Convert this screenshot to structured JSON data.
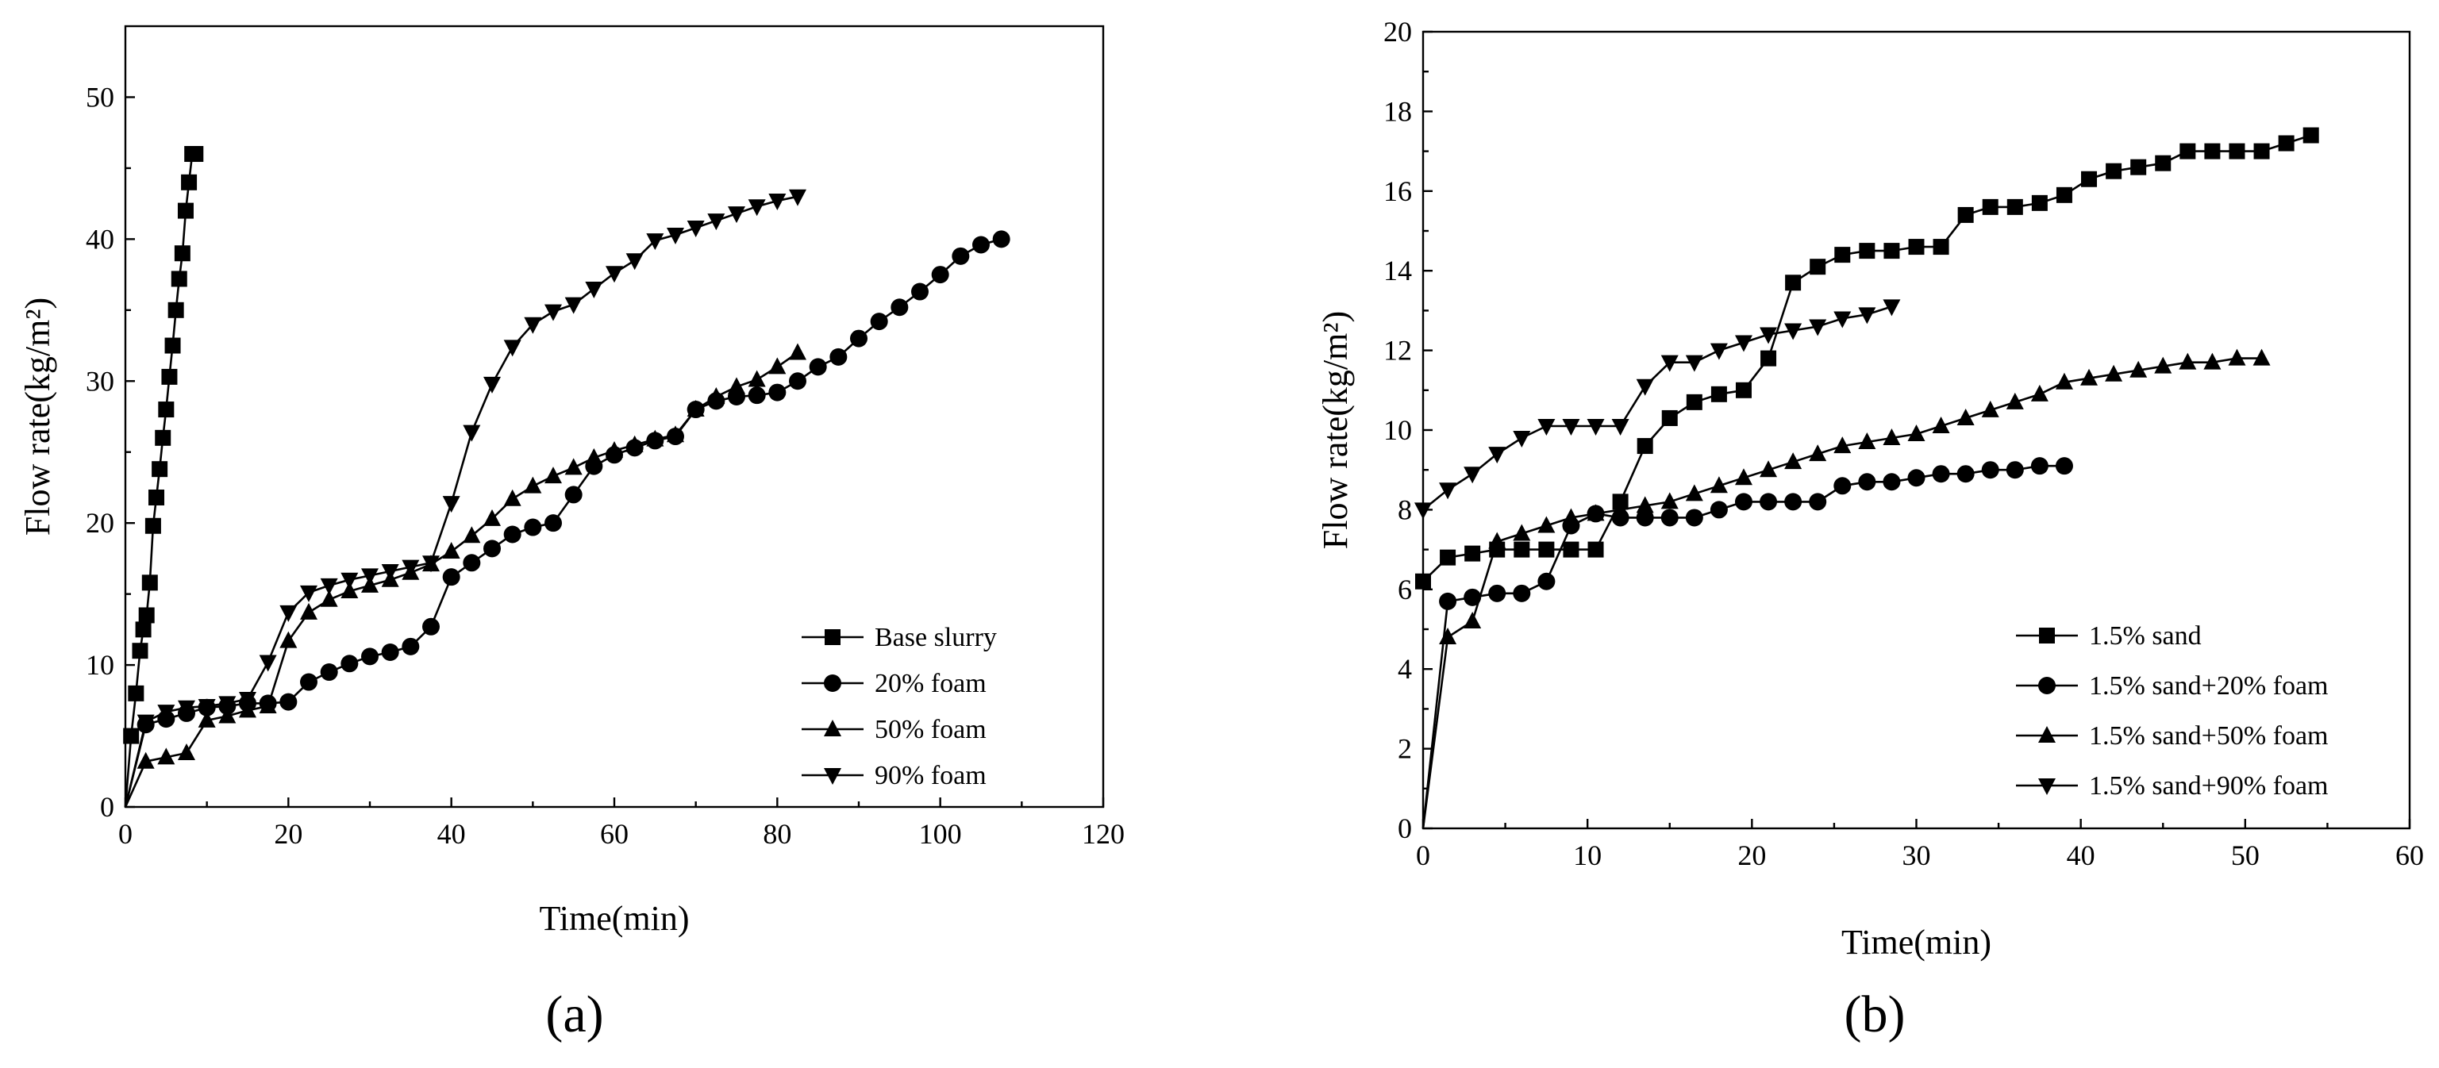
{
  "chart_data": [
    {
      "type": "line",
      "caption": "(a)",
      "xlabel": "Time(min)",
      "ylabel": "Flow rate(kg/m²)",
      "xlim": [
        0,
        120
      ],
      "ylim": [
        0,
        55
      ],
      "xticks": [
        0,
        20,
        40,
        60,
        80,
        100,
        120
      ],
      "yticks": [
        0,
        10,
        20,
        30,
        40,
        50
      ],
      "legend_position": "bottom-right",
      "series": [
        {
          "name": "Base slurry",
          "marker": "square",
          "x": [
            0,
            0.7,
            1.3,
            1.8,
            2.2,
            2.6,
            3.0,
            3.4,
            3.8,
            4.2,
            4.6,
            5.0,
            5.4,
            5.8,
            6.2,
            6.6,
            7.0,
            7.4,
            7.8,
            8.2,
            8.6
          ],
          "y": [
            0,
            5,
            8,
            11,
            12.5,
            13.5,
            15.8,
            19.8,
            21.8,
            23.8,
            26,
            28,
            30.3,
            32.5,
            35,
            37.2,
            39,
            42,
            44,
            46,
            46
          ]
        },
        {
          "name": "20% foam",
          "marker": "circle",
          "x": [
            0,
            2.5,
            5,
            7.5,
            10,
            12.5,
            15,
            17.5,
            20,
            22.5,
            25,
            27.5,
            30,
            32.5,
            35,
            37.5,
            40,
            42.5,
            45,
            47.5,
            50,
            52.5,
            55,
            57.5,
            60,
            62.5,
            65,
            67.5,
            70,
            72.5,
            75,
            77.5,
            80,
            82.5,
            85,
            87.5,
            90,
            92.5,
            95,
            97.5,
            100,
            102.5,
            105,
            107.5
          ],
          "y": [
            0,
            5.8,
            6.2,
            6.6,
            7,
            7.1,
            7.3,
            7.3,
            7.4,
            8.8,
            9.5,
            10.1,
            10.6,
            10.9,
            11.3,
            12.7,
            16.2,
            17.2,
            18.2,
            19.2,
            19.7,
            20,
            22,
            24,
            24.8,
            25.3,
            25.8,
            26.1,
            28,
            28.6,
            28.9,
            29,
            29.2,
            30,
            31,
            31.7,
            33,
            34.2,
            35.2,
            36.3,
            37.5,
            38.8,
            39.6,
            40
          ]
        },
        {
          "name": "50% foam",
          "marker": "triangle-up",
          "x": [
            0,
            2.5,
            5,
            7.5,
            10,
            12.5,
            15,
            17.5,
            20,
            22.5,
            25,
            27.5,
            30,
            32.5,
            35,
            37.5,
            40,
            42.5,
            45,
            47.5,
            50,
            52.5,
            55,
            57.5,
            60,
            62.5,
            65,
            67.5,
            70,
            72.5,
            75,
            77.5,
            80,
            82.5
          ],
          "y": [
            0,
            3.2,
            3.5,
            3.8,
            6.1,
            6.4,
            6.8,
            7.1,
            11.7,
            13.7,
            14.6,
            15.2,
            15.6,
            16,
            16.5,
            17.1,
            18,
            19.1,
            20.3,
            21.7,
            22.6,
            23.3,
            23.9,
            24.6,
            25.1,
            25.5,
            25.9,
            26.2,
            28,
            28.9,
            29.6,
            30.1,
            31,
            32
          ]
        },
        {
          "name": "90% foam",
          "marker": "triangle-down",
          "x": [
            0,
            2.5,
            5,
            7.5,
            10,
            12.5,
            15,
            17.5,
            20,
            22.5,
            25,
            27.5,
            30,
            32.5,
            35,
            37.5,
            40,
            42.5,
            45,
            47.5,
            50,
            52.5,
            55,
            57.5,
            60,
            62.5,
            65,
            67.5,
            70,
            72.5,
            75,
            77.5,
            80,
            82.5
          ],
          "y": [
            0,
            6,
            6.7,
            7,
            7.1,
            7.3,
            7.6,
            10.2,
            13.7,
            15.1,
            15.6,
            16,
            16.3,
            16.6,
            16.9,
            17.2,
            21.4,
            26.4,
            29.8,
            32.4,
            34,
            34.9,
            35.4,
            36.5,
            37.6,
            38.5,
            39.9,
            40.3,
            40.8,
            41.3,
            41.8,
            42.3,
            42.7,
            43
          ]
        }
      ]
    },
    {
      "type": "line",
      "caption": "(b)",
      "xlabel": "Time(min)",
      "ylabel": "Flow rate(kg/m²)",
      "xlim": [
        0,
        60
      ],
      "ylim": [
        0,
        20
      ],
      "xticks": [
        0,
        10,
        20,
        30,
        40,
        50,
        60
      ],
      "yticks": [
        0,
        2,
        4,
        6,
        8,
        10,
        12,
        14,
        16,
        18,
        20
      ],
      "legend_position": "bottom-right",
      "series": [
        {
          "name": "1.5% sand",
          "marker": "square",
          "x": [
            0,
            1.5,
            3,
            4.5,
            6,
            7.5,
            9,
            10.5,
            12,
            13.5,
            15,
            16.5,
            18,
            19.5,
            21,
            22.5,
            24,
            25.5,
            27,
            28.5,
            30,
            31.5,
            33,
            34.5,
            36,
            37.5,
            39,
            40.5,
            42,
            43.5,
            45,
            46.5,
            48,
            49.5,
            51,
            52.5,
            54
          ],
          "y": [
            6.2,
            6.8,
            6.9,
            7,
            7,
            7,
            7,
            7,
            8.2,
            9.6,
            10.3,
            10.7,
            10.9,
            11,
            11.8,
            13.7,
            14.1,
            14.4,
            14.5,
            14.5,
            14.6,
            14.6,
            15.4,
            15.6,
            15.6,
            15.7,
            15.9,
            16.3,
            16.5,
            16.6,
            16.7,
            17,
            17,
            17,
            17,
            17.2,
            17.4
          ]
        },
        {
          "name": "1.5% sand+20% foam",
          "marker": "circle",
          "x": [
            0,
            1.5,
            3,
            4.5,
            6,
            7.5,
            9,
            10.5,
            12,
            13.5,
            15,
            16.5,
            18,
            19.5,
            21,
            22.5,
            24,
            25.5,
            27,
            28.5,
            30,
            31.5,
            33,
            34.5,
            36,
            37.5,
            39
          ],
          "y": [
            0,
            5.7,
            5.8,
            5.9,
            5.9,
            6.2,
            7.6,
            7.9,
            7.8,
            7.8,
            7.8,
            7.8,
            8,
            8.2,
            8.2,
            8.2,
            8.2,
            8.6,
            8.7,
            8.7,
            8.8,
            8.9,
            8.9,
            9,
            9,
            9.1,
            9.1
          ]
        },
        {
          "name": "1.5% sand+50% foam",
          "marker": "triangle-up",
          "x": [
            0,
            1.5,
            3,
            4.5,
            6,
            7.5,
            9,
            10.5,
            12,
            13.5,
            15,
            16.5,
            18,
            19.5,
            21,
            22.5,
            24,
            25.5,
            27,
            28.5,
            30,
            31.5,
            33,
            34.5,
            36,
            37.5,
            39,
            40.5,
            42,
            43.5,
            45,
            46.5,
            48,
            49.5,
            51
          ],
          "y": [
            0,
            4.8,
            5.2,
            7.2,
            7.4,
            7.6,
            7.8,
            7.9,
            8,
            8.1,
            8.2,
            8.4,
            8.6,
            8.8,
            9,
            9.2,
            9.4,
            9.6,
            9.7,
            9.8,
            9.9,
            10.1,
            10.3,
            10.5,
            10.7,
            10.9,
            11.2,
            11.3,
            11.4,
            11.5,
            11.6,
            11.7,
            11.7,
            11.8,
            11.8
          ]
        },
        {
          "name": "1.5% sand+90% foam",
          "marker": "triangle-down",
          "x": [
            0,
            1.5,
            3,
            4.5,
            6,
            7.5,
            9,
            10.5,
            12,
            13.5,
            15,
            16.5,
            18,
            19.5,
            21,
            22.5,
            24,
            25.5,
            27,
            28.5
          ],
          "y": [
            8,
            8.5,
            8.9,
            9.4,
            9.8,
            10.1,
            10.1,
            10.1,
            10.1,
            11.1,
            11.7,
            11.7,
            12,
            12.2,
            12.4,
            12.5,
            12.6,
            12.8,
            12.9,
            13.1
          ]
        }
      ]
    }
  ]
}
